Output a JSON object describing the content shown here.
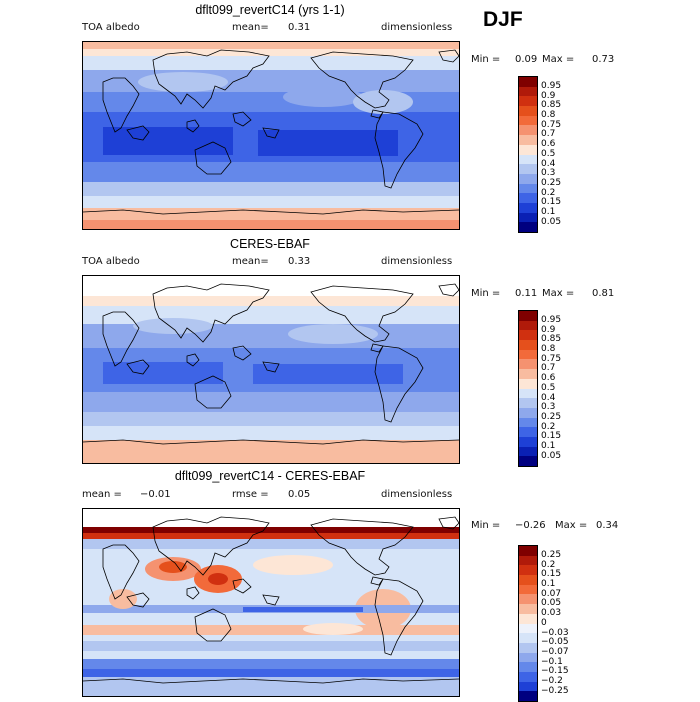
{
  "season": "DJF",
  "panels": [
    {
      "title": "dflt099_revertC14 (yrs 1-1)",
      "left_label": "TOA albedo",
      "center_label": "mean=",
      "center_value": "0.31",
      "right_label": "dimensionless",
      "min_label": "Min =",
      "min_value": "0.09",
      "max_label": "Max =",
      "max_value": "0.73",
      "colorbar_labels": [
        "0.95",
        "0.9",
        "0.85",
        "0.8",
        "0.75",
        "0.7",
        "0.6",
        "0.5",
        "0.4",
        "0.3",
        "0.25",
        "0.2",
        "0.15",
        "0.1",
        "0.05"
      ]
    },
    {
      "title": "CERES-EBAF",
      "left_label": "TOA albedo",
      "center_label": "mean=",
      "center_value": "0.33",
      "right_label": "dimensionless",
      "min_label": "Min =",
      "min_value": "0.11",
      "max_label": "Max =",
      "max_value": "0.81",
      "colorbar_labels": [
        "0.95",
        "0.9",
        "0.85",
        "0.8",
        "0.75",
        "0.7",
        "0.6",
        "0.5",
        "0.4",
        "0.3",
        "0.25",
        "0.2",
        "0.15",
        "0.1",
        "0.05"
      ]
    },
    {
      "title": "dflt099_revertC14 - CERES-EBAF",
      "left_label": "mean =",
      "left_value": "−0.01",
      "center_label": "rmse =",
      "center_value": "0.05",
      "right_label": "dimensionless",
      "min_label": "Min =",
      "min_value": "−0.26",
      "max_label": "Max =",
      "max_value": "0.34",
      "colorbar_labels": [
        "0.25",
        "0.2",
        "0.15",
        "0.1",
        "0.07",
        "0.05",
        "0.03",
        "0",
        "−0.03",
        "−0.05",
        "−0.07",
        "−0.1",
        "−0.15",
        "−0.2",
        "−0.25"
      ]
    }
  ],
  "colors": {
    "absolute": [
      "#7f0000",
      "#b01a0a",
      "#d03010",
      "#e5501c",
      "#f26a3a",
      "#f59270",
      "#f8bca0",
      "#fde6d6",
      "#d6e4f8",
      "#b2c6f0",
      "#8ea8ec",
      "#6488ea",
      "#3e64e6",
      "#1e40d6",
      "#0a20b4",
      "#000080"
    ],
    "difference": [
      "#7f0000",
      "#b01a0a",
      "#d03010",
      "#e5501c",
      "#f26a3a",
      "#f59270",
      "#f8bca0",
      "#fde6d6",
      "#eef2fb",
      "#d6e4f8",
      "#b2c6f0",
      "#8ea8ec",
      "#6488ea",
      "#3e64e6",
      "#1e40d6",
      "#000080"
    ]
  },
  "chart_data": [
    {
      "type": "heatmap",
      "title": "dflt099_revertC14 (yrs 1-1)",
      "variable": "TOA albedo",
      "units": "dimensionless",
      "season": "DJF",
      "mean": 0.31,
      "min": 0.09,
      "max": 0.73,
      "levels": [
        0.05,
        0.1,
        0.15,
        0.2,
        0.25,
        0.3,
        0.4,
        0.5,
        0.6,
        0.7,
        0.75,
        0.8,
        0.85,
        0.9,
        0.95
      ]
    },
    {
      "type": "heatmap",
      "title": "CERES-EBAF",
      "variable": "TOA albedo",
      "units": "dimensionless",
      "season": "DJF",
      "mean": 0.33,
      "min": 0.11,
      "max": 0.81,
      "levels": [
        0.05,
        0.1,
        0.15,
        0.2,
        0.25,
        0.3,
        0.4,
        0.5,
        0.6,
        0.7,
        0.75,
        0.8,
        0.85,
        0.9,
        0.95
      ]
    },
    {
      "type": "heatmap",
      "title": "dflt099_revertC14 - CERES-EBAF",
      "units": "dimensionless",
      "season": "DJF",
      "mean": -0.01,
      "rmse": 0.05,
      "min": -0.26,
      "max": 0.34,
      "levels": [
        -0.25,
        -0.2,
        -0.15,
        -0.1,
        -0.07,
        -0.05,
        -0.03,
        0,
        0.03,
        0.05,
        0.07,
        0.1,
        0.15,
        0.2,
        0.25
      ]
    }
  ]
}
